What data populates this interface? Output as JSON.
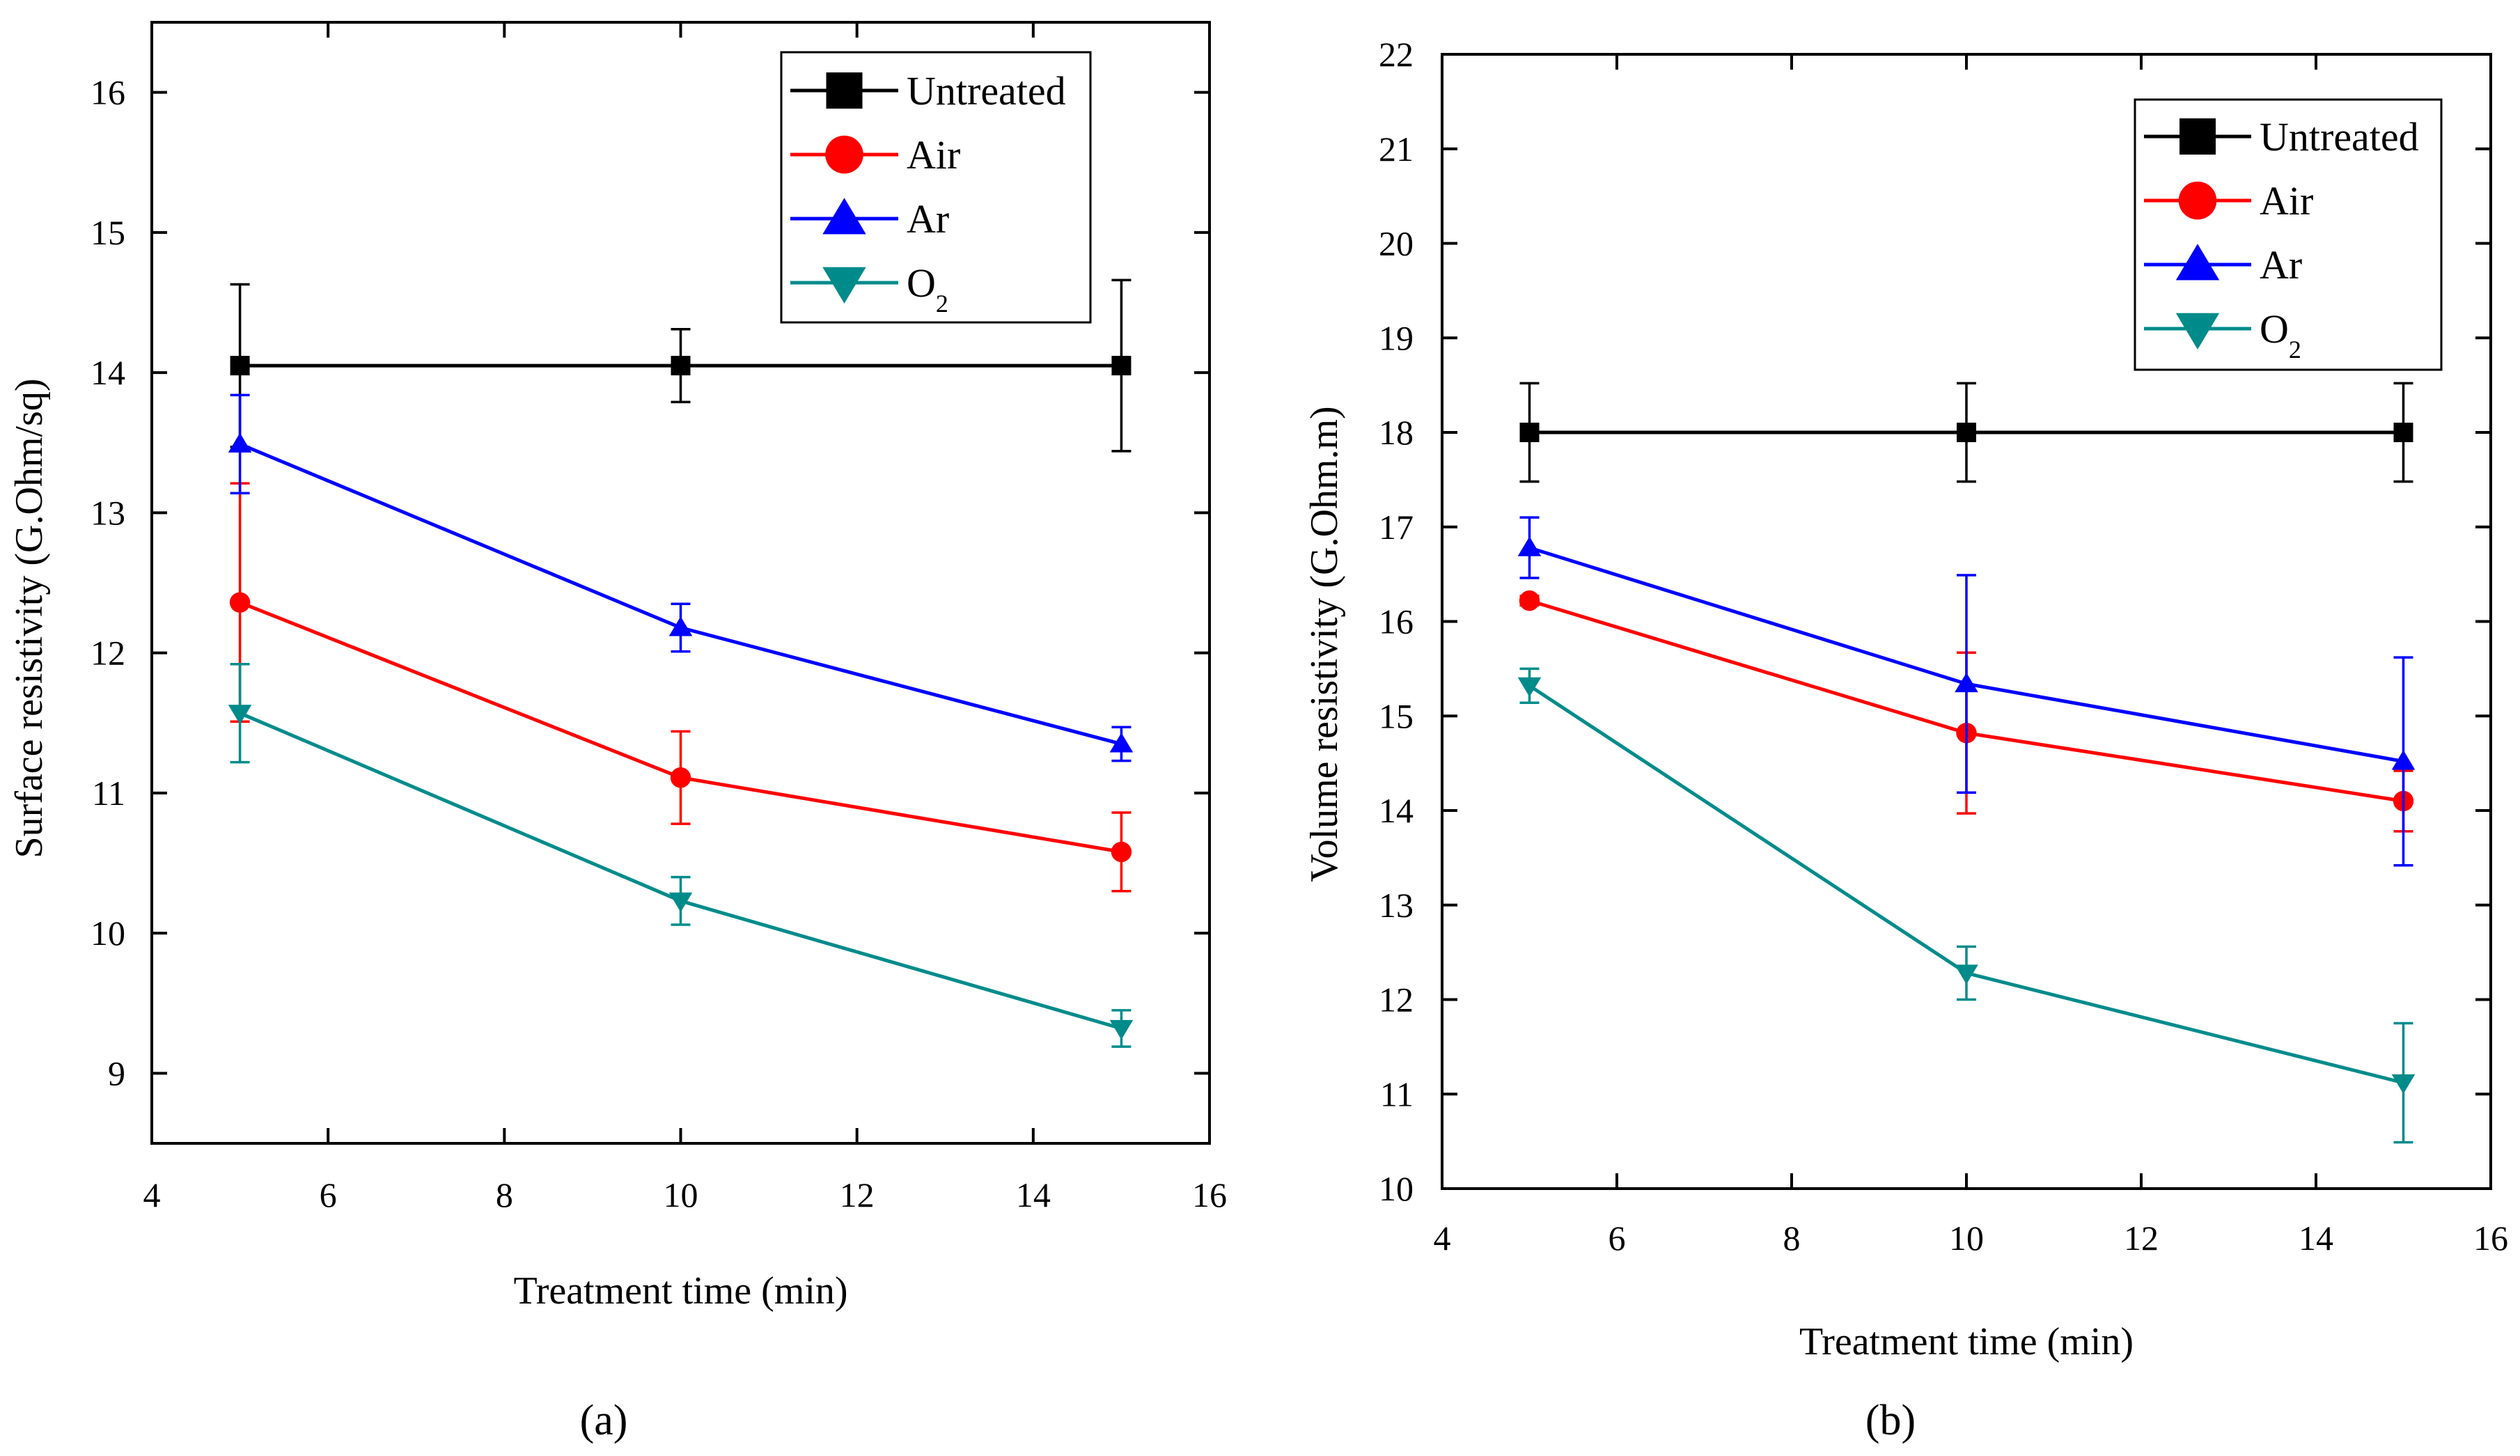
{
  "chart_data": [
    {
      "type": "line",
      "panel": "a",
      "panel_label": "(a)",
      "xlabel": "Treatment time (min)",
      "ylabel": "Surface resistivity (G.Ohm/sq)",
      "xlim": [
        4,
        16
      ],
      "ylim": [
        8.5,
        16.5
      ],
      "xticks": [
        4,
        6,
        8,
        10,
        12,
        14,
        16
      ],
      "yticks": [
        9,
        10,
        11,
        12,
        13,
        14,
        15,
        16
      ],
      "x": [
        5,
        10,
        15
      ],
      "legend_position": "top-right",
      "series": [
        {
          "name": "Untreated",
          "marker": "square",
          "color": "#000000",
          "values": [
            14.05,
            14.05,
            14.05
          ],
          "errors": [
            0.58,
            0.26,
            0.61
          ]
        },
        {
          "name": "Air",
          "marker": "circle",
          "color": "#ff0000",
          "values": [
            12.36,
            11.11,
            10.58
          ],
          "errors": [
            0.85,
            0.33,
            0.28
          ]
        },
        {
          "name": "Ar",
          "marker": "triangle-up",
          "color": "#0000ff",
          "values": [
            13.49,
            12.18,
            11.35
          ],
          "errors": [
            0.35,
            0.17,
            0.12
          ]
        },
        {
          "name": "O",
          "sub": "2",
          "marker": "triangle-down",
          "color": "#008b8b",
          "values": [
            11.57,
            10.23,
            9.32
          ],
          "errors": [
            0.35,
            0.17,
            0.13
          ]
        }
      ]
    },
    {
      "type": "line",
      "panel": "b",
      "panel_label": "(b)",
      "xlabel": "Treatment time (min)",
      "ylabel": "Volume resistivity (G.Ohm.m)",
      "xlim": [
        4,
        16
      ],
      "ylim": [
        10,
        22
      ],
      "xticks": [
        4,
        6,
        8,
        10,
        12,
        14,
        16
      ],
      "yticks": [
        10,
        11,
        12,
        13,
        14,
        15,
        16,
        17,
        18,
        19,
        20,
        21,
        22
      ],
      "x": [
        5,
        10,
        15
      ],
      "legend_position": "top-right",
      "series": [
        {
          "name": "Untreated",
          "marker": "square",
          "color": "#000000",
          "values": [
            18.0,
            18.0,
            18.0
          ],
          "errors": [
            0.52,
            0.52,
            0.52
          ]
        },
        {
          "name": "Air",
          "marker": "circle",
          "color": "#ff0000",
          "values": [
            16.22,
            14.82,
            14.1
          ],
          "errors": [
            0.05,
            0.85,
            0.32
          ]
        },
        {
          "name": "Ar",
          "marker": "triangle-up",
          "color": "#0000ff",
          "values": [
            16.78,
            15.34,
            14.52
          ],
          "errors": [
            0.32,
            1.15,
            1.1
          ]
        },
        {
          "name": "O",
          "sub": "2",
          "marker": "triangle-down",
          "color": "#008b8b",
          "values": [
            15.32,
            12.28,
            11.12
          ],
          "errors": [
            0.18,
            0.28,
            0.63
          ]
        }
      ]
    }
  ]
}
